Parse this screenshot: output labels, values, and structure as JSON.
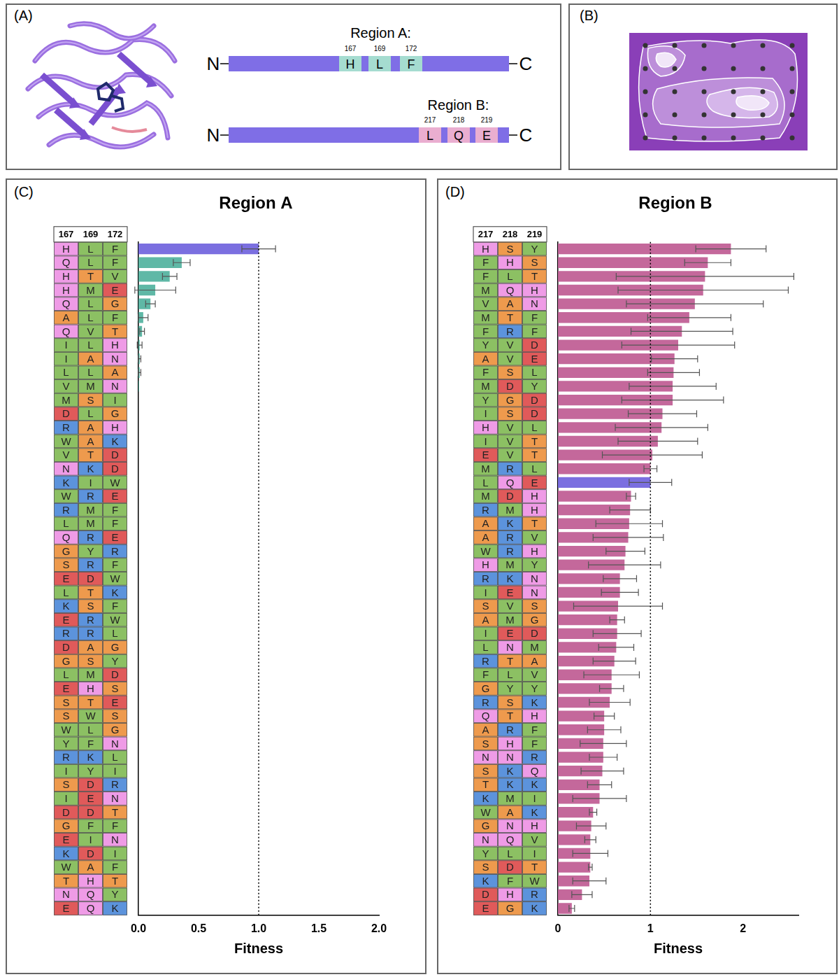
{
  "panels": [
    {
      "label": "(A)",
      "type": "diagram",
      "regions": [
        {
          "title": "Region A:",
          "ends": [
            "N",
            "C"
          ],
          "sites": [
            {
              "position": 167,
              "residue": "H"
            },
            {
              "position": 169,
              "residue": "L"
            },
            {
              "position": 172,
              "residue": "F"
            }
          ]
        },
        {
          "title": "Region B:",
          "ends": [
            "N",
            "C"
          ],
          "sites": [
            {
              "position": 217,
              "residue": "L"
            },
            {
              "position": 218,
              "residue": "Q"
            },
            {
              "position": 219,
              "residue": "E"
            }
          ]
        }
      ]
    },
    {
      "label": "(B)",
      "type": "diagram"
    }
  ],
  "chart_data": [
    {
      "label": "(C)",
      "type": "bar",
      "title": "Region A",
      "orientation": "horizontal",
      "columns": [
        167,
        169,
        172
      ],
      "categories": [
        [
          "H",
          "L",
          "F"
        ],
        [
          "Q",
          "L",
          "F"
        ],
        [
          "H",
          "T",
          "V"
        ],
        [
          "H",
          "M",
          "E"
        ],
        [
          "Q",
          "L",
          "G"
        ],
        [
          "A",
          "L",
          "F"
        ],
        [
          "Q",
          "V",
          "T"
        ],
        [
          "I",
          "L",
          "H"
        ],
        [
          "I",
          "A",
          "N"
        ],
        [
          "L",
          "L",
          "A"
        ],
        [
          "V",
          "M",
          "N"
        ],
        [
          "M",
          "S",
          "I"
        ],
        [
          "D",
          "L",
          "G"
        ],
        [
          "R",
          "A",
          "H"
        ],
        [
          "W",
          "A",
          "K"
        ],
        [
          "V",
          "T",
          "D"
        ],
        [
          "N",
          "K",
          "D"
        ],
        [
          "K",
          "I",
          "W"
        ],
        [
          "W",
          "R",
          "E"
        ],
        [
          "R",
          "M",
          "F"
        ],
        [
          "L",
          "M",
          "F"
        ],
        [
          "Q",
          "R",
          "E"
        ],
        [
          "G",
          "Y",
          "R"
        ],
        [
          "S",
          "R",
          "F"
        ],
        [
          "E",
          "D",
          "W"
        ],
        [
          "L",
          "T",
          "K"
        ],
        [
          "K",
          "S",
          "F"
        ],
        [
          "E",
          "R",
          "W"
        ],
        [
          "R",
          "R",
          "L"
        ],
        [
          "D",
          "A",
          "G"
        ],
        [
          "G",
          "S",
          "Y"
        ],
        [
          "L",
          "M",
          "D"
        ],
        [
          "E",
          "H",
          "S"
        ],
        [
          "S",
          "T",
          "E"
        ],
        [
          "S",
          "W",
          "S"
        ],
        [
          "W",
          "L",
          "G"
        ],
        [
          "Y",
          "F",
          "N"
        ],
        [
          "R",
          "K",
          "L"
        ],
        [
          "I",
          "Y",
          "I"
        ],
        [
          "S",
          "D",
          "R"
        ],
        [
          "I",
          "E",
          "N"
        ],
        [
          "D",
          "D",
          "T"
        ],
        [
          "G",
          "F",
          "F"
        ],
        [
          "E",
          "I",
          "N"
        ],
        [
          "K",
          "D",
          "I"
        ],
        [
          "W",
          "A",
          "F"
        ],
        [
          "T",
          "H",
          "T"
        ],
        [
          "N",
          "Q",
          "Y"
        ],
        [
          "E",
          "Q",
          "K"
        ]
      ],
      "values": [
        1.0,
        0.36,
        0.26,
        0.14,
        0.1,
        0.04,
        0.03,
        0.01,
        0.01,
        0.01,
        0.005,
        0,
        0,
        0,
        0,
        0,
        0,
        0,
        0,
        0,
        0,
        0,
        0,
        0,
        0,
        0,
        0,
        0,
        0,
        0,
        0,
        0,
        0,
        0,
        0,
        0,
        0,
        0,
        0,
        0,
        0,
        0,
        0,
        0,
        0,
        0,
        0,
        0,
        0
      ],
      "error": [
        0.14,
        0.07,
        0.06,
        0.17,
        0.04,
        0.04,
        0.02,
        0.02,
        0.01,
        0.01,
        0,
        0,
        0,
        0,
        0,
        0,
        0,
        0,
        0,
        0,
        0,
        0,
        0,
        0,
        0,
        0,
        0,
        0,
        0,
        0,
        0,
        0,
        0,
        0,
        0,
        0,
        0,
        0,
        0,
        0,
        0,
        0,
        0,
        0,
        0,
        0,
        0,
        0,
        0
      ],
      "colors": [
        "#7b6fe0",
        "#5fb8a6",
        "#5fb8a6",
        "#5fb8a6",
        "#5fb8a6",
        "#5fb8a6",
        "#5fb8a6",
        "#5fb8a6",
        "#5fb8a6",
        "#5fb8a6",
        "#5fb8a6",
        "#5fb8a6",
        "#5fb8a6",
        "#5fb8a6",
        "#5fb8a6",
        "#5fb8a6",
        "#5fb8a6",
        "#5fb8a6",
        "#5fb8a6",
        "#5fb8a6",
        "#5fb8a6",
        "#5fb8a6",
        "#5fb8a6",
        "#5fb8a6",
        "#5fb8a6",
        "#5fb8a6",
        "#5fb8a6",
        "#5fb8a6",
        "#5fb8a6",
        "#5fb8a6",
        "#5fb8a6",
        "#5fb8a6",
        "#5fb8a6",
        "#5fb8a6",
        "#5fb8a6",
        "#5fb8a6",
        "#5fb8a6",
        "#5fb8a6",
        "#5fb8a6",
        "#5fb8a6",
        "#5fb8a6",
        "#5fb8a6",
        "#5fb8a6",
        "#5fb8a6",
        "#5fb8a6",
        "#5fb8a6",
        "#5fb8a6",
        "#5fb8a6",
        "#5fb8a6"
      ],
      "xlim": [
        0,
        2
      ],
      "xticks": [
        {
          "value": 0,
          "label": "0.0"
        },
        {
          "value": 0.5,
          "label": "0.5"
        },
        {
          "value": 1,
          "label": "1.0"
        },
        {
          "value": 1.5,
          "label": "1.5"
        },
        {
          "value": 2,
          "label": "2.0"
        }
      ],
      "x_label": "Fitness",
      "reference_line": 1,
      "grid": false
    },
    {
      "label": "(D)",
      "type": "bar",
      "title": "Region B",
      "orientation": "horizontal",
      "columns": [
        217,
        218,
        219
      ],
      "categories": [
        [
          "H",
          "S",
          "Y"
        ],
        [
          "F",
          "H",
          "S"
        ],
        [
          "F",
          "L",
          "T"
        ],
        [
          "M",
          "Q",
          "H"
        ],
        [
          "V",
          "A",
          "N"
        ],
        [
          "M",
          "T",
          "F"
        ],
        [
          "F",
          "R",
          "F"
        ],
        [
          "Y",
          "V",
          "D"
        ],
        [
          "A",
          "V",
          "E"
        ],
        [
          "F",
          "S",
          "L"
        ],
        [
          "M",
          "D",
          "Y"
        ],
        [
          "Y",
          "G",
          "D"
        ],
        [
          "I",
          "S",
          "D"
        ],
        [
          "H",
          "V",
          "L"
        ],
        [
          "I",
          "V",
          "T"
        ],
        [
          "E",
          "V",
          "T"
        ],
        [
          "M",
          "R",
          "L"
        ],
        [
          "L",
          "Q",
          "E"
        ],
        [
          "M",
          "D",
          "H"
        ],
        [
          "R",
          "M",
          "H"
        ],
        [
          "A",
          "K",
          "T"
        ],
        [
          "A",
          "R",
          "V"
        ],
        [
          "W",
          "R",
          "H"
        ],
        [
          "H",
          "M",
          "Y"
        ],
        [
          "R",
          "K",
          "N"
        ],
        [
          "I",
          "E",
          "N"
        ],
        [
          "S",
          "V",
          "S"
        ],
        [
          "A",
          "M",
          "G"
        ],
        [
          "I",
          "E",
          "D"
        ],
        [
          "L",
          "N",
          "M"
        ],
        [
          "R",
          "T",
          "A"
        ],
        [
          "F",
          "L",
          "V"
        ],
        [
          "G",
          "Y",
          "Y"
        ],
        [
          "R",
          "S",
          "K"
        ],
        [
          "Q",
          "T",
          "H"
        ],
        [
          "A",
          "R",
          "F"
        ],
        [
          "S",
          "H",
          "F"
        ],
        [
          "N",
          "N",
          "R"
        ],
        [
          "S",
          "K",
          "Q"
        ],
        [
          "T",
          "K",
          "K"
        ],
        [
          "K",
          "M",
          "I"
        ],
        [
          "W",
          "A",
          "K"
        ],
        [
          "G",
          "N",
          "H"
        ],
        [
          "N",
          "Q",
          "V"
        ],
        [
          "Y",
          "L",
          "I"
        ],
        [
          "S",
          "D",
          "T"
        ],
        [
          "K",
          "F",
          "W"
        ],
        [
          "D",
          "H",
          "R"
        ],
        [
          "E",
          "G",
          "K"
        ]
      ],
      "values": [
        1.87,
        1.62,
        1.59,
        1.57,
        1.48,
        1.42,
        1.34,
        1.3,
        1.26,
        1.25,
        1.24,
        1.24,
        1.13,
        1.12,
        1.08,
        1.02,
        1.0,
        1.0,
        0.79,
        0.78,
        0.77,
        0.76,
        0.73,
        0.72,
        0.67,
        0.67,
        0.65,
        0.64,
        0.64,
        0.63,
        0.61,
        0.58,
        0.58,
        0.56,
        0.5,
        0.5,
        0.49,
        0.49,
        0.48,
        0.45,
        0.45,
        0.38,
        0.36,
        0.35,
        0.35,
        0.35,
        0.34,
        0.26,
        0.15
      ],
      "error": [
        0.38,
        0.25,
        0.96,
        0.92,
        0.74,
        0.45,
        0.55,
        0.61,
        0.25,
        0.28,
        0.47,
        0.55,
        0.37,
        0.5,
        0.43,
        0.54,
        0.07,
        0.23,
        0.05,
        0.22,
        0.36,
        0.38,
        0.21,
        0.39,
        0.18,
        0.2,
        0.48,
        0.08,
        0.26,
        0.19,
        0.23,
        0.3,
        0.13,
        0.22,
        0.11,
        0.18,
        0.25,
        0.15,
        0.23,
        0.13,
        0.29,
        0.04,
        0.16,
        0.06,
        0.19,
        0.02,
        0.18,
        0.11,
        0.03
      ],
      "colors": [
        "#c4689b",
        "#c4689b",
        "#c4689b",
        "#c4689b",
        "#c4689b",
        "#c4689b",
        "#c4689b",
        "#c4689b",
        "#c4689b",
        "#c4689b",
        "#c4689b",
        "#c4689b",
        "#c4689b",
        "#c4689b",
        "#c4689b",
        "#c4689b",
        "#c4689b",
        "#7b6fe0",
        "#c4689b",
        "#c4689b",
        "#c4689b",
        "#c4689b",
        "#c4689b",
        "#c4689b",
        "#c4689b",
        "#c4689b",
        "#c4689b",
        "#c4689b",
        "#c4689b",
        "#c4689b",
        "#c4689b",
        "#c4689b",
        "#c4689b",
        "#c4689b",
        "#c4689b",
        "#c4689b",
        "#c4689b",
        "#c4689b",
        "#c4689b",
        "#c4689b",
        "#c4689b",
        "#c4689b",
        "#c4689b",
        "#c4689b",
        "#c4689b",
        "#c4689b",
        "#c4689b",
        "#c4689b",
        "#c4689b"
      ],
      "xlim": [
        0,
        2.6
      ],
      "xticks": [
        0,
        1,
        2
      ],
      "x_label": "Fitness",
      "reference_line": 1,
      "grid": false
    }
  ]
}
